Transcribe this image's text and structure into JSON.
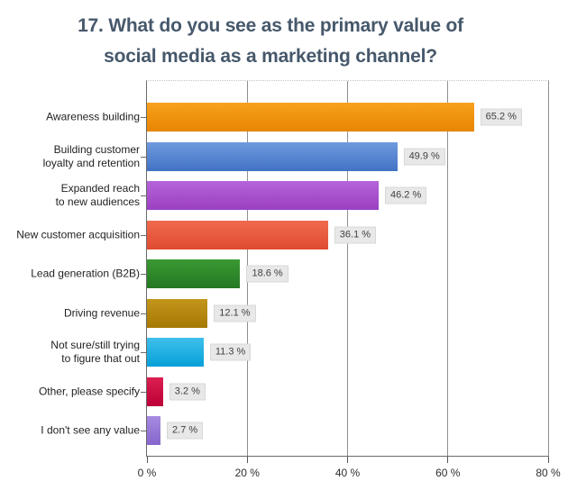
{
  "title": {
    "line1": "17.  What do you see as the primary value of",
    "line2": "social media as a marketing channel?"
  },
  "colors": {
    "title_text": "#46586b",
    "axis_line": "#6a6a6a",
    "gridline": "#8f8f8f",
    "value_label_bg": "#e8e8e8"
  },
  "chart_data": {
    "type": "bar",
    "orientation": "horizontal",
    "title": "17. What do you see as the primary value of social media as a marketing channel?",
    "xlabel": "",
    "ylabel": "",
    "xlim": [
      0,
      80
    ],
    "grid": "vertical",
    "legend": "none",
    "categories": [
      "Awareness building",
      "Building customer loyalty and retention",
      "Expanded reach to new audiences",
      "New customer acquisition",
      "Lead generation (B2B)",
      "Driving revenue",
      "Not sure/still trying to figure that out",
      "Other, please specify",
      "I don't see any value"
    ],
    "values": [
      65.2,
      49.9,
      46.2,
      36.1,
      18.6,
      12.1,
      11.3,
      3.2,
      2.7
    ],
    "x_ticks": [
      {
        "value": 0,
        "label": "0 %"
      },
      {
        "value": 20,
        "label": "20 %"
      },
      {
        "value": 40,
        "label": "40 %"
      },
      {
        "value": 60,
        "label": "60 %"
      },
      {
        "value": 80,
        "label": "80 %"
      }
    ],
    "bars": [
      {
        "label_lines": [
          "Awareness building"
        ],
        "value": 65.2,
        "value_label": "65.2 %",
        "color_top": "#f8a11e",
        "color_bottom": "#e78500"
      },
      {
        "label_lines": [
          "Building customer",
          "loyalty and retention"
        ],
        "value": 49.9,
        "value_label": "49.9 %",
        "color_top": "#6f9adf",
        "color_bottom": "#4272c4"
      },
      {
        "label_lines": [
          "Expanded reach",
          "to new audiences"
        ],
        "value": 46.2,
        "value_label": "46.2 %",
        "color_top": "#b564d8",
        "color_bottom": "#9a3fc2"
      },
      {
        "label_lines": [
          "New customer acquisition"
        ],
        "value": 36.1,
        "value_label": "36.1 %",
        "color_top": "#f06a50",
        "color_bottom": "#e04b30"
      },
      {
        "label_lines": [
          "Lead generation (B2B)"
        ],
        "value": 18.6,
        "value_label": "18.6 %",
        "color_top": "#3a9a33",
        "color_bottom": "#257722"
      },
      {
        "label_lines": [
          "Driving revenue"
        ],
        "value": 12.1,
        "value_label": "12.1 %",
        "color_top": "#c3951a",
        "color_bottom": "#a67905"
      },
      {
        "label_lines": [
          "Not sure/still trying",
          "to figure that out"
        ],
        "value": 11.3,
        "value_label": "11.3 %",
        "color_top": "#3fc0ec",
        "color_bottom": "#05a0d8"
      },
      {
        "label_lines": [
          "Other, please specify"
        ],
        "value": 3.2,
        "value_label": "3.2 %",
        "color_top": "#dc2050",
        "color_bottom": "#bc0038"
      },
      {
        "label_lines": [
          "I don't see any value"
        ],
        "value": 2.7,
        "value_label": "2.7 %",
        "color_top": "#a68be0",
        "color_bottom": "#8666cc"
      }
    ]
  }
}
